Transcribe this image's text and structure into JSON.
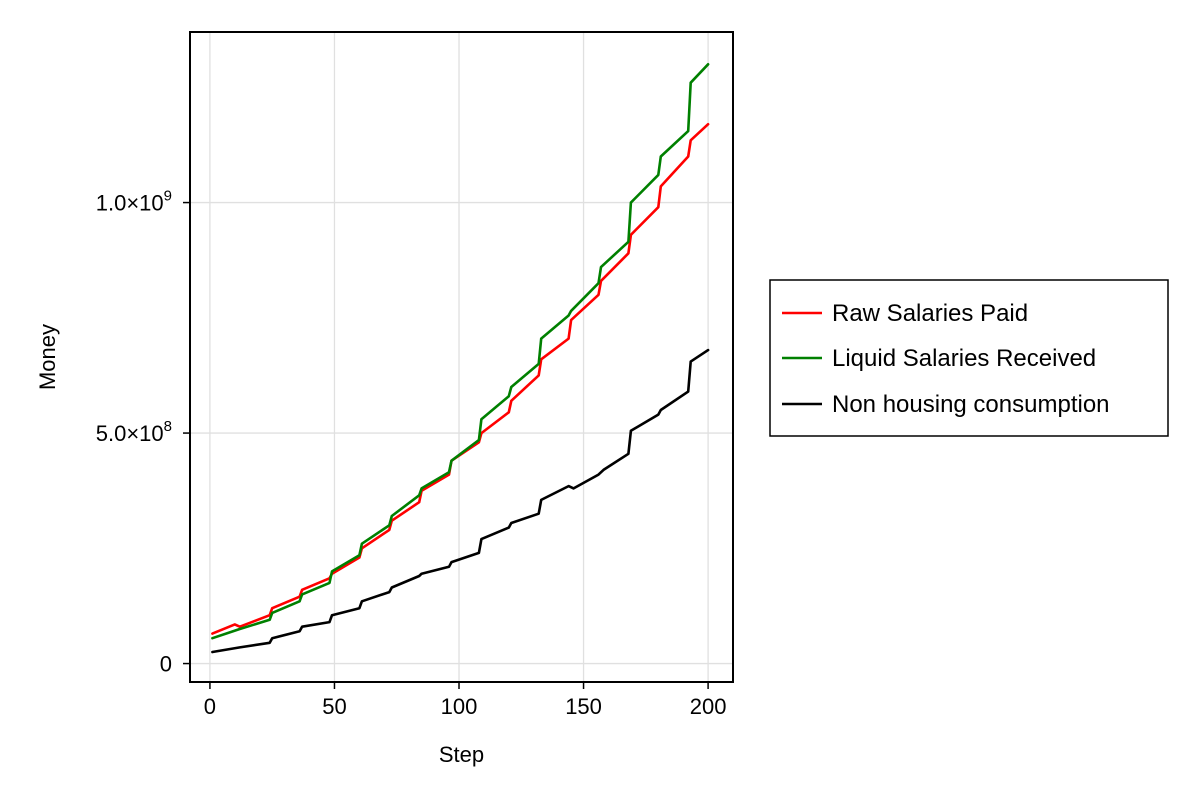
{
  "chart_data": {
    "type": "line",
    "title": "",
    "xlabel": "Step",
    "ylabel": "Money",
    "xlim": [
      -8,
      210
    ],
    "ylim": [
      -40000000,
      1370000000
    ],
    "xticks": [
      0,
      50,
      100,
      150,
      200
    ],
    "xtick_labels": [
      "0",
      "50",
      "100",
      "150",
      "200"
    ],
    "yticks": [
      0,
      500000000,
      1000000000
    ],
    "ytick_labels": [
      {
        "mantissa": "0",
        "exponent": ""
      },
      {
        "mantissa": "5.0×10",
        "exponent": "8"
      },
      {
        "mantissa": "1.0×10",
        "exponent": "9"
      }
    ],
    "grid": true,
    "legend_position": "right",
    "series": [
      {
        "name": "Raw Salaries Paid",
        "color": "#ff0000",
        "points": [
          [
            1,
            65000000
          ],
          [
            10,
            85000000
          ],
          [
            12,
            80000000
          ],
          [
            24,
            105000000
          ],
          [
            25,
            120000000
          ],
          [
            36,
            145000000
          ],
          [
            37,
            160000000
          ],
          [
            48,
            185000000
          ],
          [
            49,
            195000000
          ],
          [
            60,
            230000000
          ],
          [
            61,
            250000000
          ],
          [
            72,
            290000000
          ],
          [
            73,
            310000000
          ],
          [
            84,
            350000000
          ],
          [
            85,
            375000000
          ],
          [
            96,
            410000000
          ],
          [
            97,
            440000000
          ],
          [
            108,
            480000000
          ],
          [
            109,
            500000000
          ],
          [
            120,
            545000000
          ],
          [
            121,
            570000000
          ],
          [
            132,
            625000000
          ],
          [
            133,
            660000000
          ],
          [
            144,
            705000000
          ],
          [
            145,
            745000000
          ],
          [
            156,
            800000000
          ],
          [
            157,
            830000000
          ],
          [
            168,
            890000000
          ],
          [
            169,
            930000000
          ],
          [
            180,
            990000000
          ],
          [
            181,
            1035000000
          ],
          [
            192,
            1100000000
          ],
          [
            193,
            1135000000
          ],
          [
            200,
            1170000000
          ]
        ]
      },
      {
        "name": "Liquid Salaries Received",
        "color": "#008000",
        "points": [
          [
            1,
            55000000
          ],
          [
            12,
            75000000
          ],
          [
            24,
            95000000
          ],
          [
            25,
            110000000
          ],
          [
            36,
            135000000
          ],
          [
            37,
            150000000
          ],
          [
            48,
            175000000
          ],
          [
            49,
            200000000
          ],
          [
            60,
            235000000
          ],
          [
            61,
            260000000
          ],
          [
            72,
            300000000
          ],
          [
            73,
            320000000
          ],
          [
            84,
            365000000
          ],
          [
            85,
            380000000
          ],
          [
            96,
            415000000
          ],
          [
            97,
            440000000
          ],
          [
            108,
            485000000
          ],
          [
            109,
            530000000
          ],
          [
            120,
            580000000
          ],
          [
            121,
            600000000
          ],
          [
            132,
            650000000
          ],
          [
            133,
            705000000
          ],
          [
            144,
            755000000
          ],
          [
            145,
            765000000
          ],
          [
            156,
            825000000
          ],
          [
            157,
            860000000
          ],
          [
            168,
            915000000
          ],
          [
            169,
            1000000000
          ],
          [
            180,
            1060000000
          ],
          [
            181,
            1100000000
          ],
          [
            192,
            1155000000
          ],
          [
            193,
            1260000000
          ],
          [
            200,
            1300000000
          ]
        ]
      },
      {
        "name": "Non housing consumption",
        "color": "#000000",
        "points": [
          [
            1,
            25000000
          ],
          [
            12,
            35000000
          ],
          [
            24,
            45000000
          ],
          [
            25,
            55000000
          ],
          [
            36,
            70000000
          ],
          [
            37,
            80000000
          ],
          [
            48,
            90000000
          ],
          [
            49,
            105000000
          ],
          [
            60,
            120000000
          ],
          [
            61,
            135000000
          ],
          [
            72,
            155000000
          ],
          [
            73,
            165000000
          ],
          [
            84,
            190000000
          ],
          [
            85,
            195000000
          ],
          [
            96,
            210000000
          ],
          [
            97,
            220000000
          ],
          [
            108,
            240000000
          ],
          [
            109,
            270000000
          ],
          [
            120,
            295000000
          ],
          [
            121,
            305000000
          ],
          [
            132,
            325000000
          ],
          [
            133,
            355000000
          ],
          [
            144,
            385000000
          ],
          [
            146,
            380000000
          ],
          [
            156,
            410000000
          ],
          [
            158,
            420000000
          ],
          [
            168,
            455000000
          ],
          [
            169,
            505000000
          ],
          [
            180,
            540000000
          ],
          [
            181,
            550000000
          ],
          [
            192,
            590000000
          ],
          [
            193,
            655000000
          ],
          [
            200,
            680000000
          ]
        ]
      }
    ]
  }
}
